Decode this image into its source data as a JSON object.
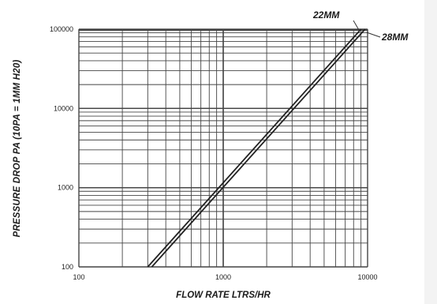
{
  "chart_data": {
    "type": "line",
    "x_scale": "log",
    "y_scale": "log",
    "xlim": [
      100,
      10000
    ],
    "ylim": [
      100,
      100000
    ],
    "x_ticks": [
      100,
      1000,
      10000
    ],
    "x_tick_labels": [
      "100",
      "1000",
      "10000"
    ],
    "y_ticks": [
      100,
      1000,
      10000,
      100000
    ],
    "y_tick_labels": [
      "100",
      "1000",
      "10000",
      "100000"
    ],
    "xlabel": "FLOW RATE LTRS/HR",
    "ylabel": "PRESSURE DROP PA (10PA = 1MM H20)",
    "grid": true,
    "series": [
      {
        "name": "22MM",
        "x": [
          300,
          9000
        ],
        "y": [
          100,
          100000
        ]
      },
      {
        "name": "28MM",
        "x": [
          320,
          9600
        ],
        "y": [
          100,
          100000
        ]
      }
    ]
  },
  "colors": {
    "grid": "#444444",
    "line": "#222222",
    "background": "#ffffff"
  }
}
